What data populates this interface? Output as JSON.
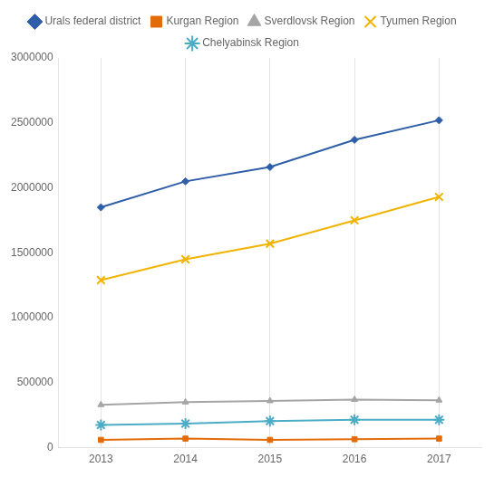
{
  "chart_data": {
    "type": "line",
    "x": [
      2013,
      2014,
      2015,
      2016,
      2017
    ],
    "xlim": [
      2012.5,
      2017.5
    ],
    "xticks": [
      2013,
      2014,
      2015,
      2016,
      2017
    ],
    "series": [
      {
        "name": "Urals federal district",
        "color": "#2E5EA8",
        "marker": "diamond",
        "values": [
          1850000,
          2050000,
          2160000,
          2370000,
          2520000
        ]
      },
      {
        "name": "Kurgan Region",
        "color": "#E36C09",
        "marker": "square",
        "values": [
          60000,
          70000,
          60000,
          65000,
          70000
        ]
      },
      {
        "name": "Sverdlovsk Region",
        "color": "#A5A5A5",
        "marker": "triangle",
        "values": [
          330000,
          350000,
          360000,
          370000,
          365000
        ]
      },
      {
        "name": "Tyumen Region",
        "color": "#F0B400",
        "marker": "x",
        "values": [
          1290000,
          1450000,
          1570000,
          1750000,
          1930000
        ]
      },
      {
        "name": "Chelyabinsk Region",
        "color": "#4BACC6",
        "marker": "star",
        "values": [
          175000,
          185000,
          205000,
          215000,
          215000
        ]
      }
    ],
    "ylim": [
      0,
      3000000
    ],
    "yticks": [
      0,
      500000,
      1000000,
      1500000,
      2000000,
      2500000,
      3000000
    ],
    "grid": "x",
    "legend": "top"
  }
}
